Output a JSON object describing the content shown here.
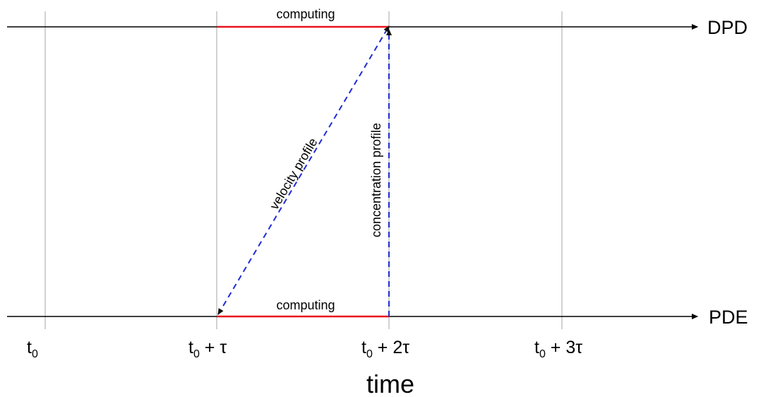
{
  "axes": {
    "top_label": "DPD",
    "bottom_label": "PDE",
    "x_title": "time"
  },
  "ticks": [
    {
      "base": "t",
      "sub": "0",
      "suffix": ""
    },
    {
      "base": "t",
      "sub": "0",
      "suffix": " + τ"
    },
    {
      "base": "t",
      "sub": "0",
      "suffix": " + 2τ"
    },
    {
      "base": "t",
      "sub": "0",
      "suffix": " + 3τ"
    }
  ],
  "segments": {
    "top_computing": "computing",
    "bottom_computing": "computing"
  },
  "arrows": {
    "velocity": "velocity profile",
    "concentration": "concentration profile"
  },
  "colors": {
    "axis": "#000000",
    "gridline": "#a6a6a6",
    "computing": "#e8141c",
    "transfer": "#1f2bd4"
  }
}
